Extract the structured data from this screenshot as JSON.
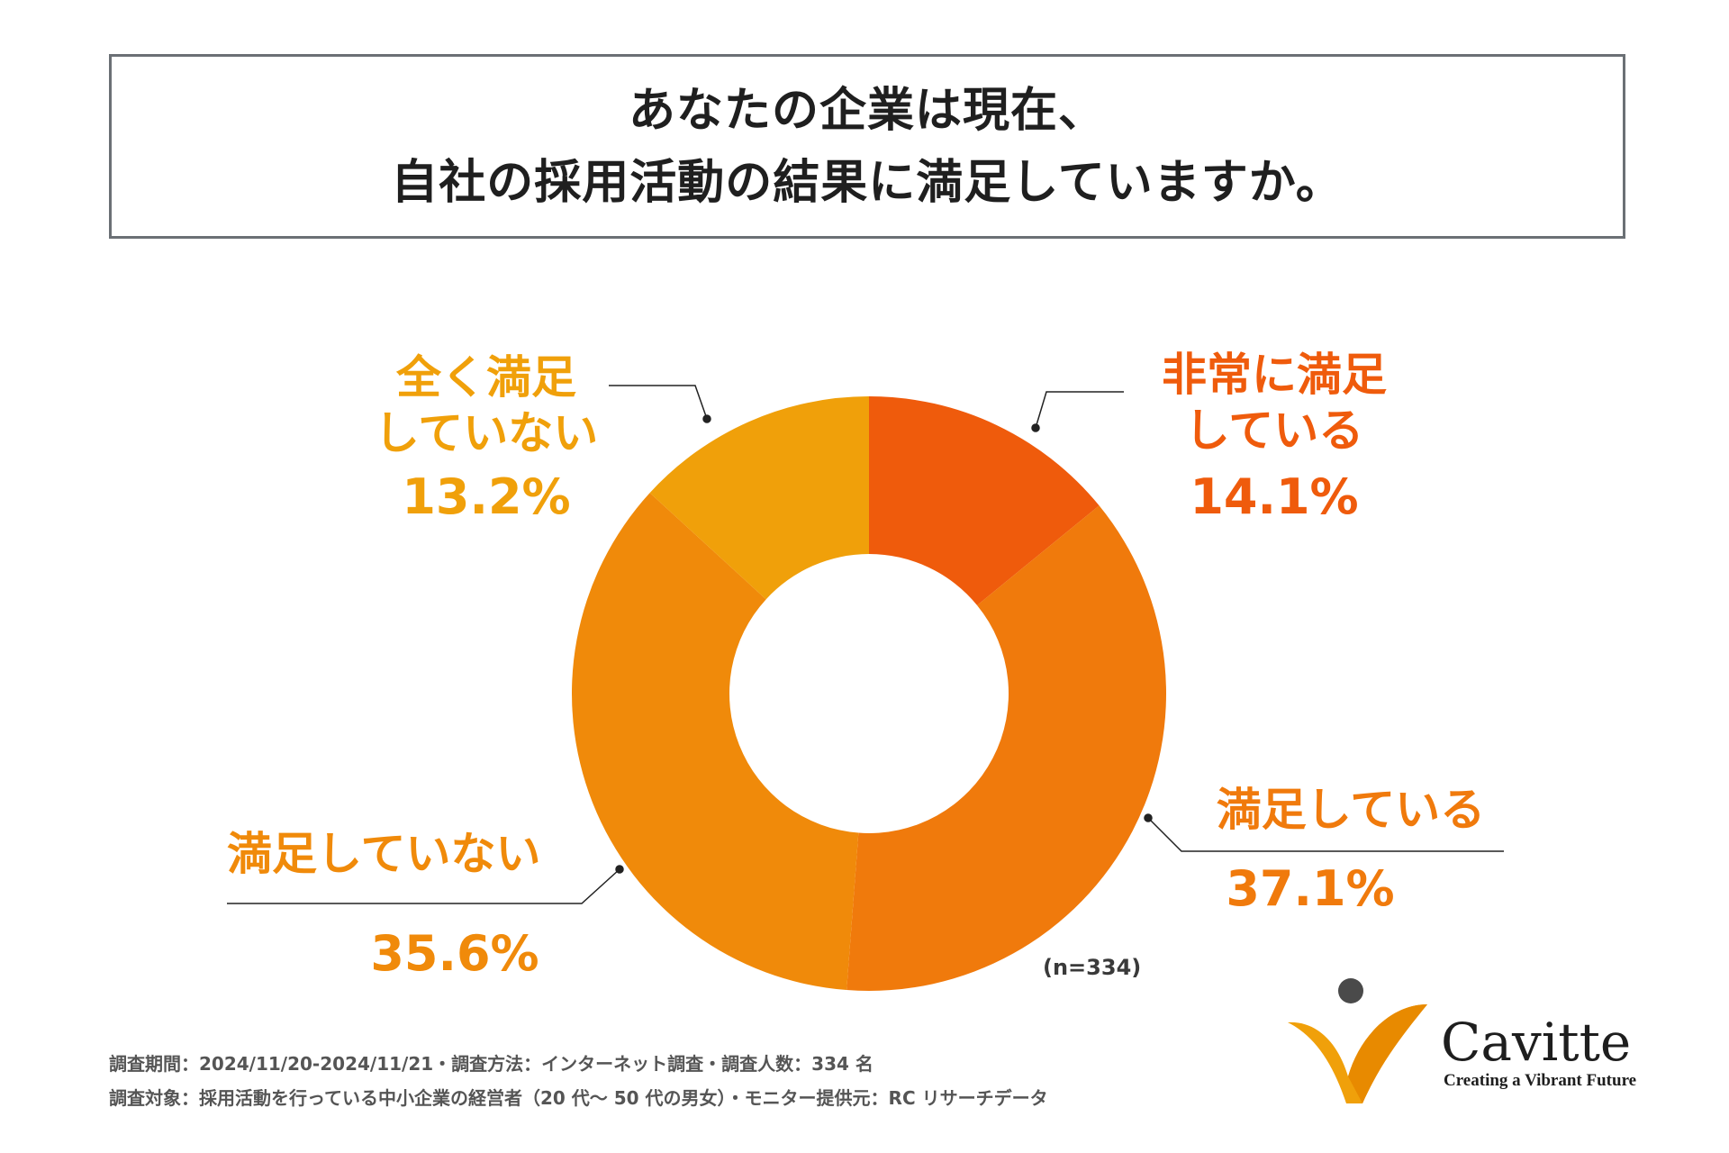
{
  "title": {
    "line1": "あなたの企業は現在、",
    "line2": "自社の採用活動の結果に満足していますか。"
  },
  "chart_data": {
    "type": "pie",
    "subtype": "donut",
    "title": "あなたの企業は現在、自社の採用活動の結果に満足していますか。",
    "categories": [
      "非常に満足している",
      "満足している",
      "満足していない",
      "全く満足していない"
    ],
    "values": [
      14.1,
      37.1,
      35.6,
      13.2
    ],
    "unit": "%",
    "colors": [
      "#ef5b0c",
      "#f07a0c",
      "#f08a0a",
      "#f0a00a"
    ],
    "n": "(n=334)"
  },
  "labels": {
    "very_satisfied": {
      "line1": "非常に満足",
      "line2": "している",
      "pct": "14.1%"
    },
    "satisfied": {
      "line1": "満足している",
      "pct": "37.1%"
    },
    "not_satisfied": {
      "line1": "満足していない",
      "pct": "35.6%"
    },
    "not_at_all": {
      "line1": "全く満足",
      "line2": "していない",
      "pct": "13.2%"
    }
  },
  "footnotes": {
    "line1": "調査期間：2024/11/20-2024/11/21・調査方法：インターネット調査・調査人数：334 名",
    "line2": "調査対象：採用活動を行っている中小企業の経営者（20 代～ 50 代の男女）・モニター提供元：RC リサーチデータ"
  },
  "logo": {
    "name": "Cavitte",
    "tagline": "Creating a Vibrant Future"
  }
}
